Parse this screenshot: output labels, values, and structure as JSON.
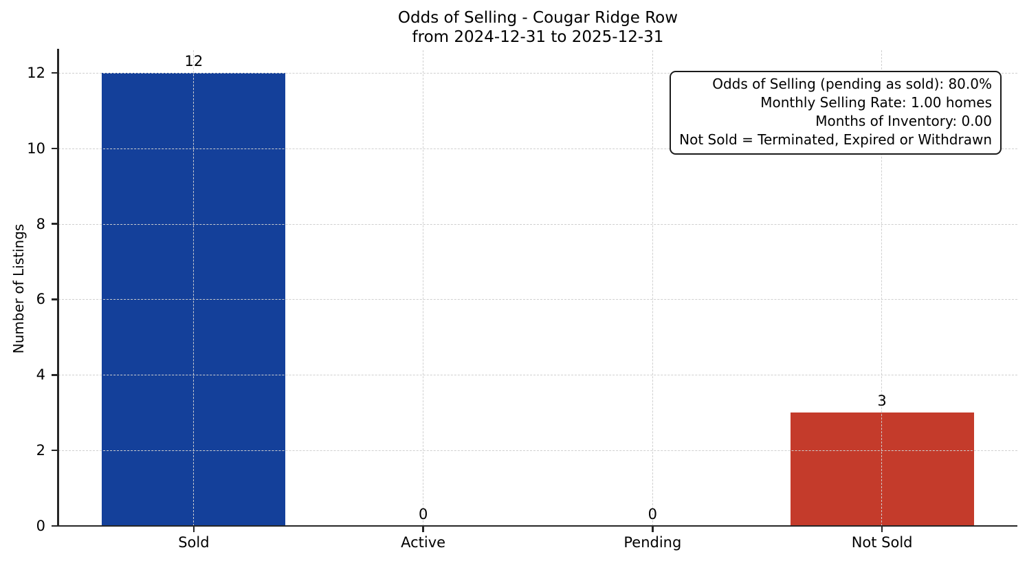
{
  "chart_data": {
    "type": "bar",
    "title": "Odds of Selling - Cougar Ridge Row",
    "subtitle": "from 2024-12-31 to 2025-12-31",
    "categories": [
      "Sold",
      "Active",
      "Pending",
      "Not Sold"
    ],
    "values": [
      12,
      0,
      0,
      3
    ],
    "value_labels": [
      "12",
      "0",
      "0",
      "3"
    ],
    "bar_colors": [
      "#14409a",
      null,
      null,
      "#c43b2b"
    ],
    "xlabel": "",
    "ylabel": "Number of Listings",
    "ylim": [
      0,
      12.6
    ],
    "yticks": [
      0,
      2,
      4,
      6,
      8,
      10,
      12
    ],
    "grid": true,
    "grid_style": "dashed",
    "grid_color": "#cfcfcf",
    "legend": false,
    "annotation": {
      "lines": [
        "Odds of Selling (pending as sold): 80.0%",
        "Monthly Selling Rate: 1.00 homes",
        "Months of Inventory: 0.00",
        "Not Sold = Terminated, Expired or Withdrawn"
      ]
    }
  }
}
